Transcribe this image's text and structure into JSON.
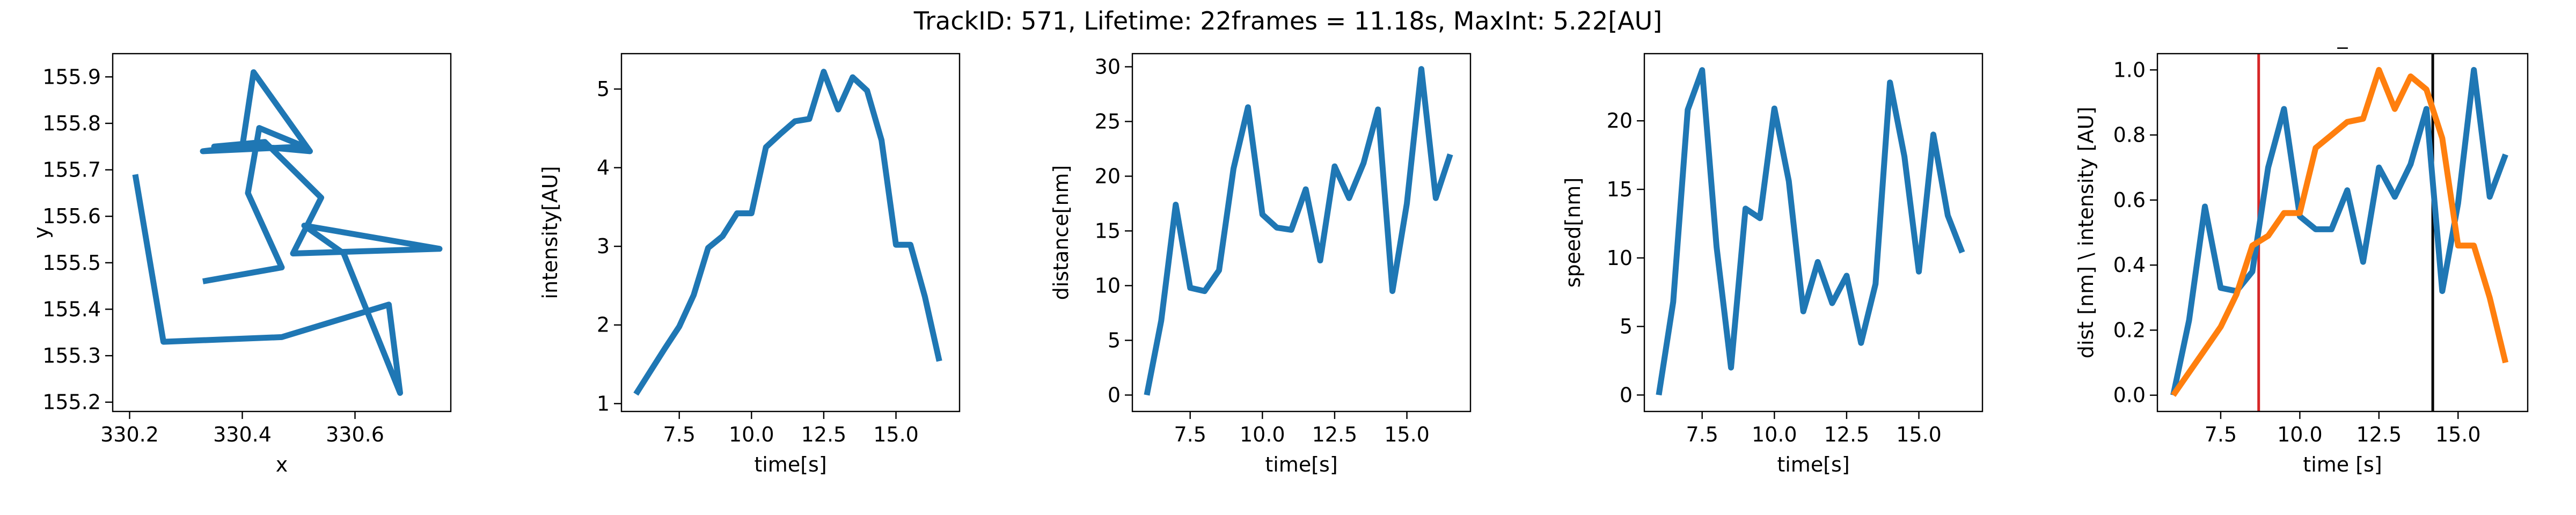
{
  "figure": {
    "suptitle": "TrackID: 571, Lifetime: 22frames = 11.18s, MaxInt: 5.22[AU]"
  },
  "colors": {
    "blue": "#1f77b4",
    "orange": "#ff7f0e",
    "red": "#d62728",
    "black": "#000000"
  },
  "chart_data": [
    {
      "type": "line",
      "title": "",
      "xlabel": "x",
      "ylabel": "y",
      "xlim": [
        330.17,
        330.77
      ],
      "ylim": [
        155.18,
        155.95
      ],
      "xticks": [
        330.2,
        330.4,
        330.6
      ],
      "xtick_labels": [
        "330.2",
        "330.4",
        "330.6"
      ],
      "yticks": [
        155.2,
        155.3,
        155.4,
        155.5,
        155.6,
        155.7,
        155.8,
        155.9
      ],
      "ytick_labels": [
        "155.2",
        "155.3",
        "155.4",
        "155.5",
        "155.6",
        "155.7",
        "155.8",
        "155.9"
      ],
      "series": [
        {
          "color": "#1f77b4",
          "x": [
            330.33,
            330.47,
            330.41,
            330.43,
            330.51,
            330.33,
            330.4,
            330.42,
            330.52,
            330.43,
            330.35,
            330.44,
            330.54,
            330.49,
            330.75,
            330.51,
            330.58,
            330.68,
            330.66,
            330.47,
            330.26,
            330.21
          ],
          "y": [
            155.46,
            155.49,
            155.65,
            155.79,
            155.75,
            155.74,
            155.75,
            155.91,
            155.74,
            155.75,
            155.75,
            155.76,
            155.64,
            155.52,
            155.53,
            155.58,
            155.52,
            155.22,
            155.41,
            155.34,
            155.33,
            155.69
          ]
        }
      ]
    },
    {
      "type": "line",
      "title": "",
      "xlabel": "time[s]",
      "ylabel": "intensity[AU]",
      "xlim": [
        5.5,
        17.2
      ],
      "ylim": [
        0.9,
        5.45
      ],
      "xticks": [
        7.5,
        10.0,
        12.5,
        15.0
      ],
      "xtick_labels": [
        "7.5",
        "10.0",
        "12.5",
        "15.0"
      ],
      "yticks": [
        1,
        2,
        3,
        4,
        5
      ],
      "ytick_labels": [
        "1",
        "2",
        "3",
        "4",
        "5"
      ],
      "series": [
        {
          "color": "#1f77b4",
          "x": [
            6.0,
            6.5,
            7.0,
            7.5,
            8.0,
            8.5,
            9.0,
            9.5,
            10.0,
            10.5,
            11.0,
            11.5,
            12.0,
            12.5,
            13.0,
            13.5,
            14.0,
            14.5,
            15.0,
            15.5,
            16.0,
            16.5
          ],
          "y": [
            1.12,
            1.41,
            1.7,
            1.98,
            2.38,
            2.98,
            3.13,
            3.42,
            3.42,
            4.26,
            4.43,
            4.59,
            4.62,
            5.22,
            4.74,
            5.15,
            4.98,
            4.35,
            3.02,
            3.02,
            2.36,
            1.54
          ]
        }
      ]
    },
    {
      "type": "line",
      "title": "",
      "xlabel": "time[s]",
      "ylabel": "distance[nm]",
      "xlim": [
        5.5,
        17.2
      ],
      "ylim": [
        -1.5,
        31.2
      ],
      "xticks": [
        7.5,
        10.0,
        12.5,
        15.0
      ],
      "xtick_labels": [
        "7.5",
        "10.0",
        "12.5",
        "15.0"
      ],
      "yticks": [
        0,
        5,
        10,
        15,
        20,
        25,
        30
      ],
      "ytick_labels": [
        "0",
        "5",
        "10",
        "15",
        "20",
        "25",
        "30"
      ],
      "series": [
        {
          "color": "#1f77b4",
          "x": [
            6.0,
            6.5,
            7.0,
            7.5,
            8.0,
            8.5,
            9.0,
            9.5,
            10.0,
            10.5,
            11.0,
            11.5,
            12.0,
            12.5,
            13.0,
            13.5,
            14.0,
            14.5,
            15.0,
            15.5,
            16.0,
            16.5
          ],
          "y": [
            0.0,
            6.8,
            17.4,
            9.8,
            9.5,
            11.4,
            20.7,
            26.3,
            16.5,
            15.3,
            15.1,
            18.8,
            12.3,
            20.9,
            18.0,
            21.2,
            26.1,
            9.5,
            17.5,
            29.8,
            18.0,
            22.0
          ]
        }
      ]
    },
    {
      "type": "line",
      "title": "",
      "xlabel": "time[s]",
      "ylabel": "speed[nm]",
      "xlim": [
        5.5,
        17.2
      ],
      "ylim": [
        -1.2,
        24.9
      ],
      "xticks": [
        7.5,
        10.0,
        12.5,
        15.0
      ],
      "xtick_labels": [
        "7.5",
        "10.0",
        "12.5",
        "15.0"
      ],
      "yticks": [
        0,
        5,
        10,
        15,
        20
      ],
      "ytick_labels": [
        "0",
        "5",
        "10",
        "15",
        "20"
      ],
      "series": [
        {
          "color": "#1f77b4",
          "x": [
            6.0,
            6.5,
            7.0,
            7.5,
            8.0,
            8.5,
            9.0,
            9.5,
            10.0,
            10.5,
            11.0,
            11.5,
            12.0,
            12.5,
            13.0,
            13.5,
            14.0,
            14.5,
            15.0,
            15.5,
            16.0,
            16.5
          ],
          "y": [
            0.0,
            6.8,
            20.8,
            23.7,
            10.8,
            2.0,
            13.6,
            12.9,
            20.9,
            15.6,
            6.1,
            9.7,
            6.7,
            8.7,
            3.8,
            8.1,
            22.8,
            17.4,
            9.0,
            19.0,
            13.1,
            10.4
          ]
        }
      ]
    },
    {
      "type": "line",
      "title": "_",
      "xlabel": "time [s]",
      "ylabel": "dist [nm] \\ intensity [AU]",
      "xlim": [
        5.5,
        17.2
      ],
      "ylim": [
        -0.05,
        1.05
      ],
      "xticks": [
        7.5,
        10.0,
        12.5,
        15.0
      ],
      "xtick_labels": [
        "7.5",
        "10.0",
        "12.5",
        "15.0"
      ],
      "yticks": [
        0.0,
        0.2,
        0.4,
        0.6,
        0.8,
        1.0
      ],
      "ytick_labels": [
        "0.0",
        "0.2",
        "0.4",
        "0.6",
        "0.8",
        "1.0"
      ],
      "series": [
        {
          "color": "#1f77b4",
          "x": [
            6.0,
            6.5,
            7.0,
            7.5,
            8.0,
            8.5,
            9.0,
            9.5,
            10.0,
            10.5,
            11.0,
            11.5,
            12.0,
            12.5,
            13.0,
            13.5,
            14.0,
            14.5,
            15.0,
            15.5,
            16.0,
            16.5
          ],
          "y": [
            0.0,
            0.23,
            0.58,
            0.33,
            0.32,
            0.38,
            0.7,
            0.88,
            0.55,
            0.51,
            0.51,
            0.63,
            0.41,
            0.7,
            0.61,
            0.71,
            0.88,
            0.32,
            0.59,
            1.0,
            0.61,
            0.74
          ]
        },
        {
          "color": "#ff7f0e",
          "x": [
            6.0,
            6.5,
            7.0,
            7.5,
            8.0,
            8.5,
            9.0,
            9.5,
            10.0,
            10.5,
            11.0,
            11.5,
            12.0,
            12.5,
            13.0,
            13.5,
            14.0,
            14.5,
            15.0,
            15.5,
            16.0,
            16.5
          ],
          "y": [
            0.0,
            0.07,
            0.14,
            0.21,
            0.31,
            0.46,
            0.49,
            0.56,
            0.56,
            0.76,
            0.8,
            0.84,
            0.85,
            1.0,
            0.88,
            0.98,
            0.94,
            0.79,
            0.46,
            0.46,
            0.3,
            0.1
          ]
        }
      ],
      "vlines": [
        {
          "x": 8.7,
          "color": "#d62728"
        },
        {
          "x": 14.2,
          "color": "#000000"
        }
      ]
    }
  ]
}
